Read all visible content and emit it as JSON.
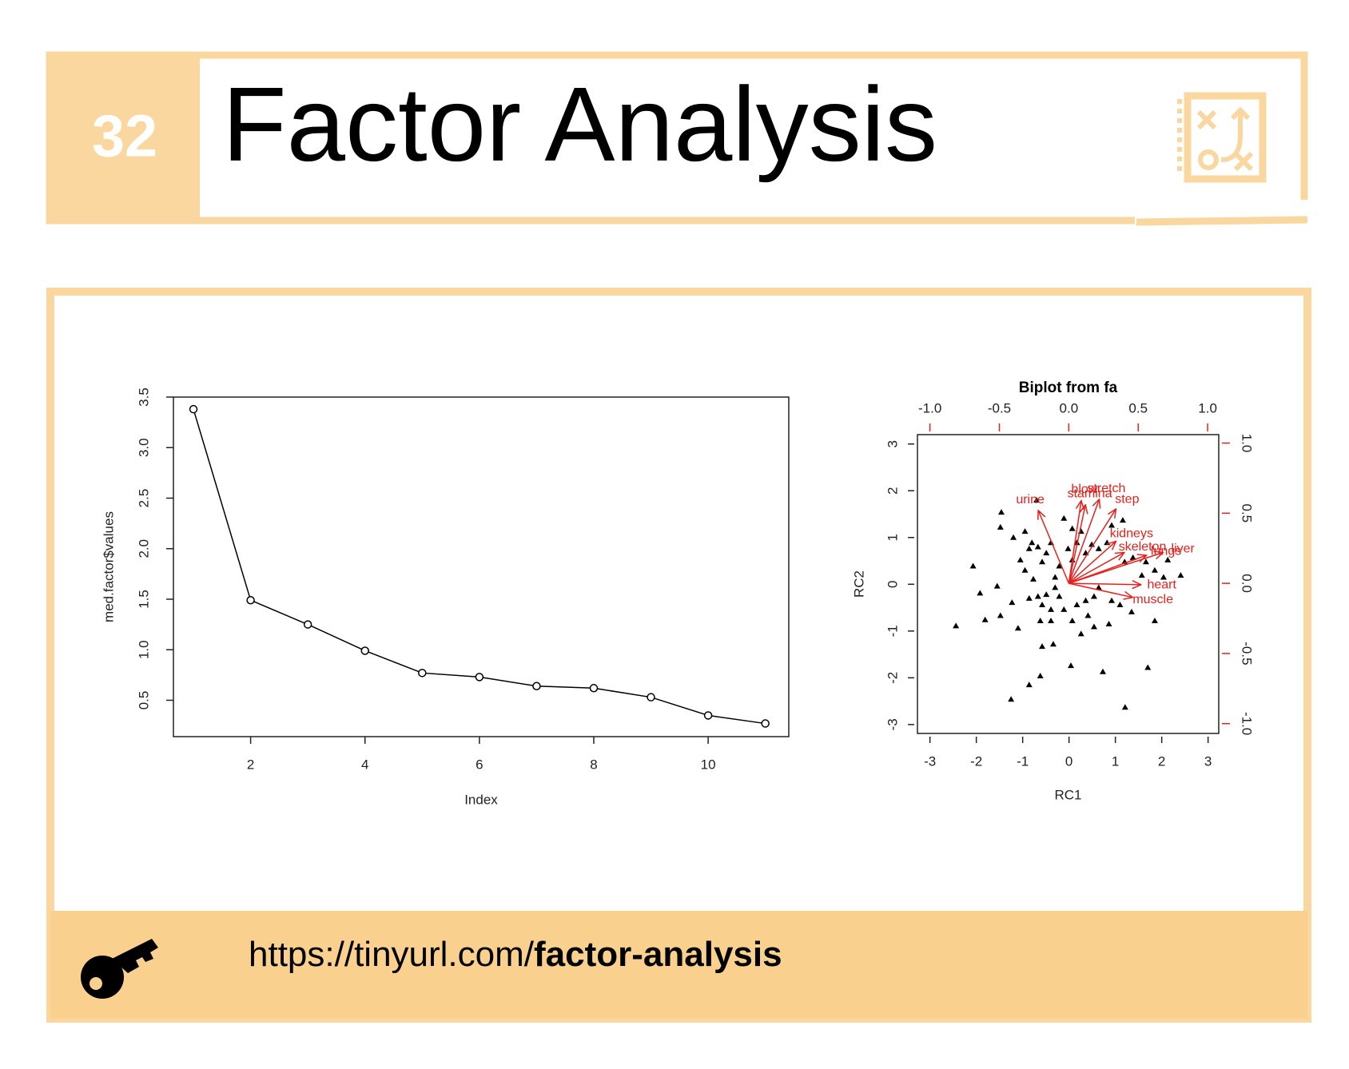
{
  "header": {
    "number": "32",
    "title": "Factor Analysis"
  },
  "chart_data": [
    {
      "type": "line",
      "xlabel": "Index",
      "ylabel": "med.factor$values",
      "x": [
        1,
        2,
        3,
        4,
        5,
        6,
        7,
        8,
        9,
        10,
        11
      ],
      "values": [
        3.38,
        1.49,
        1.25,
        0.99,
        0.77,
        0.73,
        0.64,
        0.62,
        0.53,
        0.35,
        0.27
      ],
      "color": "#000000",
      "xlim": [
        0.65,
        11.41
      ],
      "ylim": [
        0.14,
        3.5
      ],
      "xticks": [
        2,
        4,
        6,
        8,
        10
      ],
      "yticks": [
        0.5,
        {
          "value": 1,
          "label": "1.0"
        },
        1.5,
        {
          "value": 2,
          "label": "2.0"
        },
        2.5,
        {
          "value": 3,
          "label": "3.0"
        },
        3.5
      ]
    },
    {
      "type": "biplot",
      "title": "Biplot from fa",
      "xlabel": "RC1",
      "ylabel": "RC2",
      "xlim": [
        -3.27,
        3.23
      ],
      "ylim": [
        -3.19,
        3.2
      ],
      "xticks": [
        -3,
        -2,
        -1,
        0,
        1,
        2,
        3
      ],
      "yticks": [
        -3,
        -2,
        -1,
        0,
        1,
        2,
        3
      ],
      "x2lim": [
        -1.09,
        1.08
      ],
      "y2lim": [
        -1.07,
        1.06
      ],
      "x2ticks": [
        {
          "value": -1,
          "label": "-1.0"
        },
        -0.5,
        {
          "value": 0,
          "label": "0.0"
        },
        0.5,
        {
          "value": 1,
          "label": "1.0"
        }
      ],
      "y2ticks": [
        {
          "value": -1,
          "label": "-1.0"
        },
        -0.5,
        {
          "value": 0,
          "label": "0.0"
        },
        0.5,
        {
          "value": 1,
          "label": "1.0"
        }
      ],
      "points": {
        "color": "#000000",
        "x": [
          -0.7,
          -1.46,
          -1.48,
          -1.2,
          -2.07,
          -1.92,
          -2.44,
          -1.81,
          -1.48,
          -1.55,
          -1.23,
          -1.1,
          -1.05,
          -0.95,
          -0.86,
          -0.8,
          -0.67,
          -0.58,
          -0.49,
          -0.39,
          -0.77,
          -0.86,
          -0.67,
          -0.58,
          -0.49,
          -0.39,
          -0.3,
          -0.21,
          -0.62,
          -0.39,
          -0.58,
          -0.34,
          -0.62,
          -0.86,
          -1.25,
          0.04,
          0.73,
          1.7,
          1.21,
          -0.11,
          0.07,
          0.26,
          0.17,
          -0.02,
          0.07,
          0.36,
          0.49,
          0.64,
          0.82,
          1.16,
          0.92,
          1.2,
          1.38,
          1.66,
          1.85,
          2.13,
          2.41,
          2.04,
          1.57,
          1.85,
          1.35,
          0.86,
          0.54,
          0.26,
          0.41,
          0.07,
          0.64,
          0.54,
          0.92,
          1.1,
          -0.11,
          0.17,
          0.36,
          -0.21,
          -0.3,
          -0.95
        ],
        "y": [
          1.8,
          1.54,
          1.22,
          1.0,
          0.39,
          -0.19,
          -0.89,
          -0.76,
          -0.67,
          -0.04,
          -0.39,
          -0.94,
          0.52,
          0.3,
          0.76,
          0.89,
          0.8,
          0.48,
          0.67,
          0.89,
          0.11,
          -0.3,
          -0.26,
          -0.44,
          -0.22,
          -0.54,
          -0.07,
          -0.26,
          -0.78,
          -0.78,
          -1.33,
          -1.28,
          -1.96,
          -2.15,
          -2.46,
          -1.74,
          -1.87,
          -1.78,
          -2.63,
          1.41,
          1.19,
          1.13,
          0.89,
          0.76,
          0.52,
          0.67,
          0.85,
          0.76,
          0.89,
          1.37,
          1.26,
          0.48,
          0.57,
          0.48,
          0.3,
          0.52,
          0.19,
          0.15,
          0.19,
          -0.78,
          -0.59,
          -0.85,
          -0.91,
          -1.06,
          -0.67,
          -0.78,
          -0.07,
          -0.26,
          -0.35,
          -0.44,
          -0.54,
          -0.44,
          -0.35,
          0.39,
          0.15,
          1.13
        ]
      },
      "loadings": {
        "color": "#e8201c",
        "names": [
          "urine",
          "blow",
          "stamina",
          "stretch",
          "step",
          "kidneys",
          "skeleton",
          "lungs",
          "liver",
          "heart",
          "muscle"
        ],
        "x": [
          -0.22,
          0.09,
          0.12,
          0.22,
          0.34,
          0.34,
          0.4,
          0.56,
          0.68,
          0.52,
          0.46
        ],
        "y": [
          0.52,
          0.59,
          0.56,
          0.6,
          0.53,
          0.3,
          0.22,
          0.2,
          0.22,
          -0.01,
          -0.1
        ]
      }
    }
  ],
  "footer": {
    "url_prefix": "https://tinyurl.com/",
    "url_slug": "factor-analysis"
  }
}
